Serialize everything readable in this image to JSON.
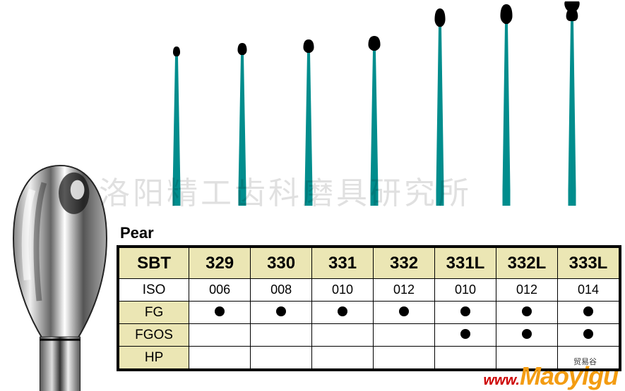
{
  "watermark_cn": "洛阳精工齿科磨具研究所",
  "watermark_www": "www.",
  "watermark_brand": "Maoyigu",
  "watermark_small": "贸易谷",
  "shape_label": "Pear",
  "colors": {
    "header_bg": "#ebe6b4",
    "border": "#000000",
    "dot": "#000000",
    "bur_shaft": "#008d8d",
    "bur_tip": "#000000"
  },
  "burs": [
    {
      "tip_w": 10,
      "tip_h": 14,
      "shaft_h": 190,
      "shape": "pear"
    },
    {
      "tip_w": 13,
      "tip_h": 17,
      "shaft_h": 192,
      "shape": "pear"
    },
    {
      "tip_w": 15,
      "tip_h": 19,
      "shaft_h": 195,
      "shape": "pear"
    },
    {
      "tip_w": 17,
      "tip_h": 21,
      "shaft_h": 198,
      "shape": "pear"
    },
    {
      "tip_w": 15,
      "tip_h": 26,
      "shaft_h": 232,
      "shape": "pear-long"
    },
    {
      "tip_w": 17,
      "tip_h": 28,
      "shaft_h": 236,
      "shape": "pear-long"
    },
    {
      "tip_w": 19,
      "tip_h": 30,
      "shaft_h": 240,
      "shape": "inverted"
    }
  ],
  "table": {
    "columns": [
      "SBT",
      "329",
      "330",
      "331",
      "332",
      "331L",
      "332L",
      "333L"
    ],
    "rows": [
      {
        "label": "ISO",
        "cells": [
          "006",
          "008",
          "010",
          "012",
          "010",
          "012",
          "014"
        ]
      },
      {
        "label": "FG",
        "cells": [
          "●",
          "●",
          "●",
          "●",
          "●",
          "●",
          "●"
        ]
      },
      {
        "label": "FGOS",
        "cells": [
          "",
          "",
          "",
          "",
          "●",
          "●",
          "●"
        ]
      },
      {
        "label": "HP",
        "cells": [
          "",
          "",
          "",
          "",
          "",
          "",
          ""
        ]
      }
    ]
  }
}
